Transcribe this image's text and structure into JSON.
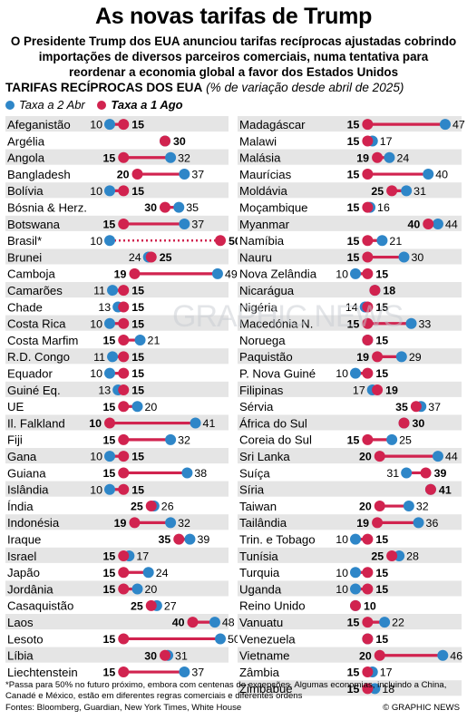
{
  "title": "As novas tarifas de Trump",
  "subtitle": "O Presidente Trump dos EUA anunciou tarifas recíprocas ajustadas cobrindo importações de diversos parceiros comerciais, numa tentativa para reordenar a economia global a favor dos Estados Unidos",
  "chart_heading": "TARIFAS RECÍPROCAS DOS EUA",
  "chart_unit": "(% de variação desde abril de 2025)",
  "legend": {
    "apr": "Taxa a 2 Abr",
    "aug": "Taxa a 1 Ago"
  },
  "colors": {
    "apr": "#2e86c8",
    "aug": "#d1234f",
    "row_alt": "#e5e5e5",
    "row": "#ffffff"
  },
  "watermark": "GRAPHIC NEWS",
  "footnote": "*Passa para 50% no futuro próximo, embora com centenas de excepções. Algumas economias, incluindo a China, Canadé e México, estão em diferentes regras comerciais e diferentes ordens",
  "sources": "Fontes: Bloomberg, Guardian, New York Times, White House",
  "credit": "© GRAPHIC NEWS",
  "chart_data": [
    {
      "type": "dumbbell",
      "xlim": [
        10,
        50
      ],
      "series": [
        {
          "name": "Taxa a 2 Abr",
          "key": "apr"
        },
        {
          "name": "Taxa a 1 Ago",
          "key": "aug"
        }
      ],
      "rows": [
        {
          "country": "Afeganistão",
          "apr": 10,
          "aug": 15
        },
        {
          "country": "Argélia",
          "apr": 30,
          "aug": 30
        },
        {
          "country": "Angola",
          "apr": 32,
          "aug": 15
        },
        {
          "country": "Bangladesh",
          "apr": 37,
          "aug": 20
        },
        {
          "country": "Bolívia",
          "apr": 10,
          "aug": 15
        },
        {
          "country": "Bósnia & Herz.",
          "apr": 35,
          "aug": 30
        },
        {
          "country": "Botswana",
          "apr": 37,
          "aug": 15
        },
        {
          "country": "Brasil*",
          "apr": 10,
          "aug": 50,
          "dotted": true
        },
        {
          "country": "Brunei",
          "apr": 24,
          "aug": 25
        },
        {
          "country": "Camboja",
          "apr": 49,
          "aug": 19
        },
        {
          "country": "Camarões",
          "apr": 11,
          "aug": 15
        },
        {
          "country": "Chade",
          "apr": 13,
          "aug": 15
        },
        {
          "country": "Costa Rica",
          "apr": 10,
          "aug": 15
        },
        {
          "country": "Costa Marfim",
          "apr": 21,
          "aug": 15
        },
        {
          "country": "R.D. Congo",
          "apr": 11,
          "aug": 15
        },
        {
          "country": "Equador",
          "apr": 10,
          "aug": 15
        },
        {
          "country": "Guiné Eq.",
          "apr": 13,
          "aug": 15
        },
        {
          "country": "UE",
          "apr": 20,
          "aug": 15
        },
        {
          "country": "Il. Falkland",
          "apr": 41,
          "aug": 10
        },
        {
          "country": "Fiji",
          "apr": 32,
          "aug": 15
        },
        {
          "country": "Gana",
          "apr": 10,
          "aug": 15
        },
        {
          "country": "Guiana",
          "apr": 38,
          "aug": 15
        },
        {
          "country": "Islândia",
          "apr": 10,
          "aug": 15
        },
        {
          "country": "Índia",
          "apr": 26,
          "aug": 25
        },
        {
          "country": "Indonésia",
          "apr": 32,
          "aug": 19
        },
        {
          "country": "Iraque",
          "apr": 39,
          "aug": 35
        },
        {
          "country": "Israel",
          "apr": 17,
          "aug": 15
        },
        {
          "country": "Japão",
          "apr": 24,
          "aug": 15
        },
        {
          "country": "Jordânia",
          "apr": 20,
          "aug": 15
        },
        {
          "country": "Casaquistão",
          "apr": 27,
          "aug": 25
        },
        {
          "country": "Laos",
          "apr": 48,
          "aug": 40
        },
        {
          "country": "Lesoto",
          "apr": 50,
          "aug": 15
        },
        {
          "country": "Líbia",
          "apr": 31,
          "aug": 30
        },
        {
          "country": "Liechtenstein",
          "apr": 37,
          "aug": 15
        }
      ]
    },
    {
      "type": "dumbbell",
      "xlim": [
        10,
        50
      ],
      "series": [
        {
          "name": "Taxa a 2 Abr",
          "key": "apr"
        },
        {
          "name": "Taxa a 1 Ago",
          "key": "aug"
        }
      ],
      "rows": [
        {
          "country": "Madagáscar",
          "apr": 47,
          "aug": 15
        },
        {
          "country": "Malawi",
          "apr": 17,
          "aug": 15
        },
        {
          "country": "Malásia",
          "apr": 24,
          "aug": 19
        },
        {
          "country": "Maurícias",
          "apr": 40,
          "aug": 15
        },
        {
          "country": "Moldávia",
          "apr": 31,
          "aug": 25
        },
        {
          "country": "Moçambique",
          "apr": 16,
          "aug": 15
        },
        {
          "country": "Myanmar",
          "apr": 44,
          "aug": 40
        },
        {
          "country": "Namíbia",
          "apr": 21,
          "aug": 15
        },
        {
          "country": "Nauru",
          "apr": 30,
          "aug": 15
        },
        {
          "country": "Nova Zelândia",
          "apr": 10,
          "aug": 15
        },
        {
          "country": "Nicarágua",
          "apr": 18,
          "aug": 18
        },
        {
          "country": "Nigéria",
          "apr": 14,
          "aug": 15
        },
        {
          "country": "Macedónia N.",
          "apr": 33,
          "aug": 15
        },
        {
          "country": "Noruega",
          "apr": 15,
          "aug": 15
        },
        {
          "country": "Paquistão",
          "apr": 29,
          "aug": 19
        },
        {
          "country": "P. Nova Guiné",
          "apr": 10,
          "aug": 15
        },
        {
          "country": "Filipinas",
          "apr": 17,
          "aug": 19
        },
        {
          "country": "Sérvia",
          "apr": 37,
          "aug": 35
        },
        {
          "country": "África do Sul",
          "apr": 30,
          "aug": 30
        },
        {
          "country": "Coreia do Sul",
          "apr": 25,
          "aug": 15
        },
        {
          "country": "Sri Lanka",
          "apr": 44,
          "aug": 20
        },
        {
          "country": "Suíça",
          "apr": 31,
          "aug": 39
        },
        {
          "country": "Síria",
          "apr": 41,
          "aug": 41
        },
        {
          "country": "Taiwan",
          "apr": 32,
          "aug": 20
        },
        {
          "country": "Tailândia",
          "apr": 36,
          "aug": 19
        },
        {
          "country": "Trin. e Tobago",
          "apr": 10,
          "aug": 15
        },
        {
          "country": "Tunísia",
          "apr": 28,
          "aug": 25
        },
        {
          "country": "Turquia",
          "apr": 10,
          "aug": 15
        },
        {
          "country": "Uganda",
          "apr": 10,
          "aug": 15
        },
        {
          "country": "Reino Unido",
          "apr": 10,
          "aug": 10
        },
        {
          "country": "Vanuatu",
          "apr": 22,
          "aug": 15
        },
        {
          "country": "Venezuela",
          "apr": 15,
          "aug": 15
        },
        {
          "country": "Vietname",
          "apr": 46,
          "aug": 20
        },
        {
          "country": "Zâmbia",
          "apr": 17,
          "aug": 15
        },
        {
          "country": "Zimbabué",
          "apr": 18,
          "aug": 15
        }
      ]
    }
  ]
}
